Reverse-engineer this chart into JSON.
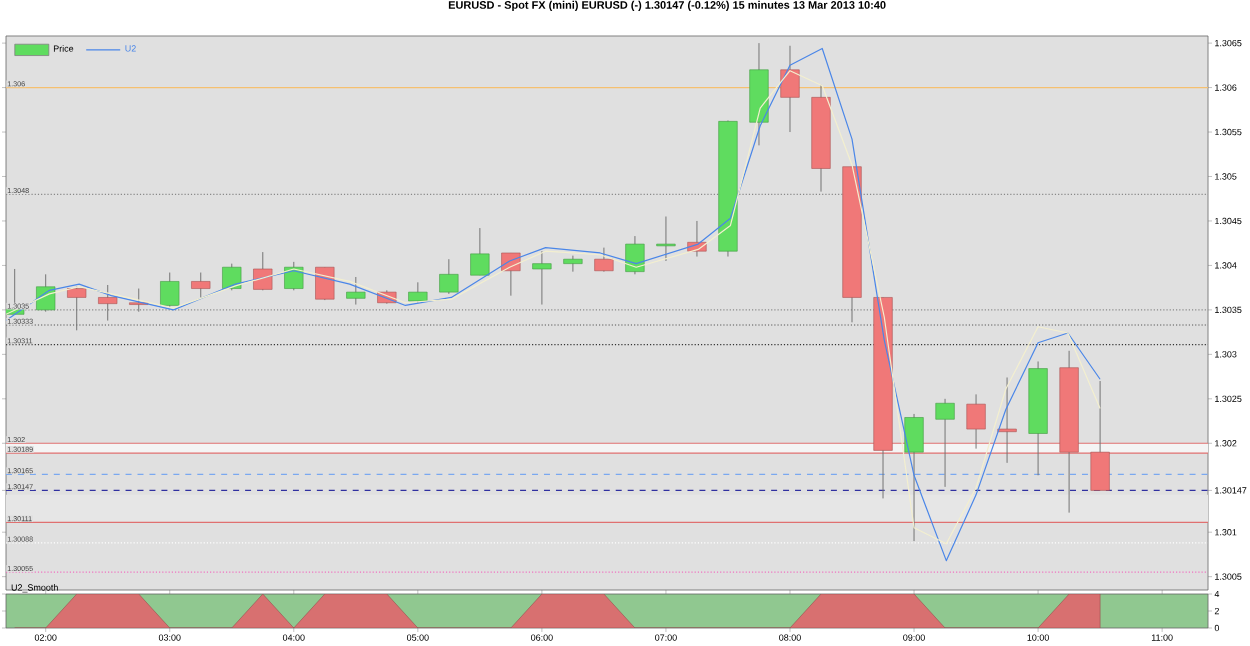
{
  "chart_data": [
    {
      "type": "candlestick",
      "title": "EURUSD - Spot FX (mini) EURUSD (-) 1.30147 (-0.12%) 15 minutes 13 Mar 2013 10:40",
      "xlim": [
        1.68,
        11.37
      ],
      "ylim": [
        1.30035,
        1.30658
      ],
      "yticks": [
        1.3005,
        1.301,
        {
          "value": 1.30147,
          "label": "1.30147"
        },
        1.302,
        1.3025,
        1.303,
        1.3035,
        1.304,
        1.3045,
        1.305,
        1.3055,
        1.306,
        1.3065
      ],
      "tick_labels": "y",
      "legend": "top left",
      "marker": "none",
      "series": [
        {
          "name": "Price",
          "type": "candlestick",
          "x": [
            1.75,
            2,
            2.25,
            2.5,
            2.75,
            3,
            3.25,
            3.5,
            3.75,
            4,
            4.25,
            4.5,
            4.75,
            5,
            5.25,
            5.5,
            5.75,
            6,
            6.25,
            6.5,
            6.75,
            7,
            7.25,
            7.5,
            7.75,
            8,
            8.25,
            8.5,
            8.75,
            9,
            9.25,
            9.5,
            9.75,
            10,
            10.25,
            10.5
          ],
          "ohlc": [
            [
              1.30345,
              1.30396,
              1.30345,
              1.30351
            ],
            [
              1.3035,
              1.3039,
              1.30348,
              1.30376
            ],
            [
              1.30374,
              1.30376,
              1.30327,
              1.30364
            ],
            [
              1.30364,
              1.30378,
              1.30338,
              1.30357
            ],
            [
              1.30358,
              1.30374,
              1.30348,
              1.30356
            ],
            [
              1.30355,
              1.30392,
              1.30353,
              1.30382
            ],
            [
              1.30382,
              1.30392,
              1.30364,
              1.30374
            ],
            [
              1.30374,
              1.30402,
              1.30372,
              1.30398
            ],
            [
              1.30396,
              1.30415,
              1.30372,
              1.30373
            ],
            [
              1.30374,
              1.30404,
              1.30372,
              1.30398
            ],
            [
              1.30398,
              1.30398,
              1.30361,
              1.30362
            ],
            [
              1.30363,
              1.30387,
              1.30356,
              1.3037
            ],
            [
              1.3037,
              1.30372,
              1.30357,
              1.30358
            ],
            [
              1.3036,
              1.30381,
              1.30358,
              1.3037
            ],
            [
              1.3037,
              1.30407,
              1.30368,
              1.3039
            ],
            [
              1.30389,
              1.30442,
              1.30389,
              1.30413
            ],
            [
              1.30414,
              1.30414,
              1.30366,
              1.30394
            ],
            [
              1.30396,
              1.30416,
              1.30356,
              1.30402
            ],
            [
              1.30402,
              1.30411,
              1.30393,
              1.30407
            ],
            [
              1.30407,
              1.3042,
              1.30393,
              1.30394
            ],
            [
              1.30393,
              1.30433,
              1.3039,
              1.30424
            ],
            [
              1.30422,
              1.30455,
              1.30405,
              1.30424
            ],
            [
              1.30426,
              1.3045,
              1.3041,
              1.30416
            ],
            [
              1.30416,
              1.30563,
              1.3041,
              1.30562
            ],
            [
              1.30561,
              1.3065,
              1.30535,
              1.3062
            ],
            [
              1.3062,
              1.30647,
              1.3055,
              1.30589
            ],
            [
              1.30589,
              1.30603,
              1.30483,
              1.30509
            ],
            [
              1.30511,
              1.30511,
              1.30336,
              1.30364
            ],
            [
              1.30364,
              1.30364,
              1.30138,
              1.30192
            ],
            [
              1.3019,
              1.30233,
              1.3009,
              1.30229
            ],
            [
              1.30227,
              1.3025,
              1.30151,
              1.30245
            ],
            [
              1.30244,
              1.30255,
              1.30194,
              1.30216
            ],
            [
              1.30216,
              1.30274,
              1.30178,
              1.30213
            ],
            [
              1.30211,
              1.30292,
              1.30164,
              1.30284
            ],
            [
              1.30285,
              1.30304,
              1.30122,
              1.3019
            ],
            [
              1.3019,
              1.3027,
              1.30147,
              1.30147
            ]
          ],
          "colors": [
            "#5fdc5f",
            "#5fdc5f",
            "#f07878",
            "#f07878",
            "#f07878",
            "#5fdc5f",
            "#f07878",
            "#5fdc5f",
            "#f07878",
            "#5fdc5f",
            "#f07878",
            "#5fdc5f",
            "#f07878",
            "#5fdc5f",
            "#5fdc5f",
            "#5fdc5f",
            "#f07878",
            "#5fdc5f",
            "#5fdc5f",
            "#f07878",
            "#5fdc5f",
            "#5fdc5f",
            "#f07878",
            "#5fdc5f",
            "#5fdc5f",
            "#f07878",
            "#f07878",
            "#f07878",
            "#f07878",
            "#5fdc5f",
            "#5fdc5f",
            "#f07878",
            "#f07878",
            "#5fdc5f",
            "#f07878",
            "#f07878"
          ]
        },
        {
          "name": "U2",
          "type": "line",
          "color": "#4a86e8",
          "x": [
            1.68,
            2.03,
            2.27,
            2.53,
            3.03,
            3.53,
            4.0,
            4.45,
            4.9,
            5.27,
            5.74,
            6.03,
            6.47,
            6.76,
            7.26,
            7.52,
            7.76,
            8.0,
            8.26,
            8.5,
            8.76,
            9.0,
            9.26,
            9.5,
            9.74,
            10.0,
            10.24,
            10.5
          ],
          "values": [
            1.30338,
            1.30372,
            1.30379,
            1.30366,
            1.3035,
            1.30379,
            1.30394,
            1.30379,
            1.30355,
            1.30364,
            1.30405,
            1.3042,
            1.30414,
            1.30402,
            1.30424,
            1.30453,
            1.30557,
            1.30625,
            1.30644,
            1.30542,
            1.30316,
            1.30164,
            1.30068,
            1.30142,
            1.30238,
            1.30313,
            1.30324,
            1.30272
          ]
        },
        {
          "type": "line",
          "color": "#f3efcf",
          "x": [
            1.68,
            2.03,
            2.27,
            2.53,
            3.03,
            3.53,
            4.0,
            4.45,
            4.9,
            5.27,
            5.74,
            6.03,
            6.47,
            6.76,
            7.26,
            7.52,
            7.76,
            8.0,
            8.26,
            8.5,
            8.76,
            9.0,
            9.26,
            9.5,
            9.74,
            10.0,
            10.24,
            10.5
          ],
          "values": [
            1.30345,
            1.30368,
            1.30376,
            1.30368,
            1.30352,
            1.30377,
            1.30396,
            1.30382,
            1.30358,
            1.30362,
            1.30398,
            1.30416,
            1.30412,
            1.30398,
            1.30418,
            1.30445,
            1.30577,
            1.30619,
            1.30602,
            1.30513,
            1.30342,
            1.30105,
            1.30087,
            1.3015,
            1.30261,
            1.30331,
            1.30324,
            1.30239
          ]
        }
      ],
      "bands": [
        {
          "axis": "y",
          "from": 1.30189,
          "to": 1.302,
          "color": "#f4f4f4"
        },
        {
          "axis": "y",
          "from": 1.30111,
          "to": 1.30142,
          "color": "#e6e6e6"
        }
      ],
      "ref_lines": [
        {
          "axis": "y",
          "value": 1.306,
          "label": "1.306",
          "color": "#f5c070",
          "line_style": "solid"
        },
        {
          "axis": "y",
          "value": 1.3048,
          "label": "1.3048",
          "color": "#888888",
          "line_style": "dotted"
        },
        {
          "axis": "y",
          "value": 1.3035,
          "label": "1.3035",
          "color": "#888888",
          "line_style": "dotted"
        },
        {
          "axis": "y",
          "value": 1.30333,
          "label": "1.30333",
          "color": "#555555",
          "line_style": "dotted"
        },
        {
          "axis": "y",
          "value": 1.30311,
          "label": "1.30311",
          "color": "#333333",
          "line_style": "dotted"
        },
        {
          "axis": "y",
          "value": 1.302,
          "label": "1.302",
          "color": "#e07070",
          "line_style": "solid"
        },
        {
          "axis": "y",
          "value": 1.30189,
          "label": "1.30189",
          "color": "#e07070",
          "line_style": "solid"
        },
        {
          "axis": "y",
          "value": 1.30165,
          "label": "1.30165",
          "color": "#7aa8f0",
          "line_style": "dashed"
        },
        {
          "axis": "y",
          "value": 1.30147,
          "label": "1.30147",
          "color": "#3030a0",
          "line_style": "dashed"
        },
        {
          "axis": "y",
          "value": 1.30111,
          "label": "1.30111",
          "color": "#e07070",
          "line_style": "solid"
        },
        {
          "axis": "y",
          "value": 1.30088,
          "label": "1.30088",
          "color": "#ffffff",
          "line_style": "dotted"
        },
        {
          "axis": "y",
          "value": 1.30055,
          "label": "1.30055",
          "color": "#f070c0",
          "line_style": "dotted"
        }
      ]
    },
    {
      "type": "area",
      "title": "U2_Smooth",
      "x": [
        1.75,
        2,
        2.25,
        2.5,
        2.75,
        3,
        3.25,
        3.5,
        3.75,
        4,
        4.25,
        4.5,
        4.75,
        5,
        5.25,
        5.5,
        5.75,
        6,
        6.25,
        6.5,
        6.75,
        7,
        7.25,
        7.5,
        7.75,
        8,
        8.25,
        8.5,
        8.75,
        9,
        9.25,
        9.5,
        9.75,
        10,
        10.25,
        10.5
      ],
      "xlim": [
        1.68,
        11.37
      ],
      "xticks": [
        {
          "value": 2,
          "label": "02:00"
        },
        {
          "value": 3,
          "label": "03:00"
        },
        {
          "value": 4,
          "label": "04:00"
        },
        {
          "value": 5,
          "label": "05:00"
        },
        {
          "value": 6,
          "label": "06:00"
        },
        {
          "value": 7,
          "label": "07:00"
        },
        {
          "value": 8,
          "label": "08:00"
        },
        {
          "value": 9,
          "label": "09:00"
        },
        {
          "value": 10,
          "label": "10:00"
        },
        {
          "value": 11,
          "label": "11:00"
        }
      ],
      "ylim": [
        0,
        4
      ],
      "yticks": [
        0,
        2,
        4
      ],
      "series": [
        {
          "color": "#d87070",
          "values": [
            0,
            0,
            4,
            4,
            4,
            0,
            0,
            0,
            4,
            0,
            4,
            4,
            4,
            0,
            0,
            0,
            0,
            4,
            4,
            4,
            0,
            0,
            0,
            0,
            0,
            0,
            4,
            4,
            4,
            4,
            0,
            0,
            0,
            0,
            4,
            4
          ]
        }
      ]
    }
  ]
}
